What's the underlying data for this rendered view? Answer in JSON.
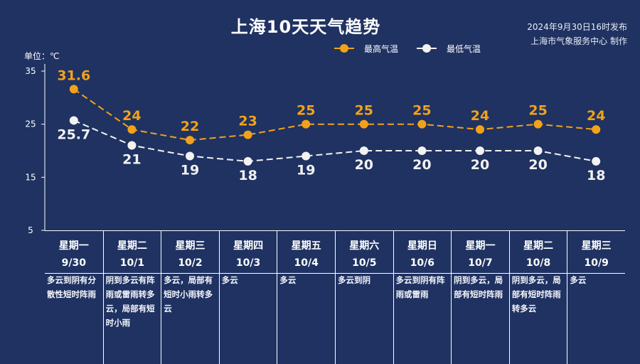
{
  "title": "上海10天天气趋势",
  "publisher": {
    "date": "2024年9月30日16时发布",
    "org": "上海市气象服务中心 制作"
  },
  "unit_label": "单位：℃",
  "legend": {
    "max_label": "最高气温",
    "min_label": "最低气温"
  },
  "colors": {
    "background": "#1f3261",
    "max_series": "#f2a21a",
    "min_series": "#f2f2f2",
    "text": "#ffffff"
  },
  "chart_data": {
    "type": "line",
    "title": "上海10天天气趋势",
    "categories": [
      "9/30",
      "10/1",
      "10/2",
      "10/3",
      "10/4",
      "10/5",
      "10/6",
      "10/7",
      "10/8",
      "10/9"
    ],
    "x": [
      "9/30",
      "10/1",
      "10/2",
      "10/3",
      "10/4",
      "10/5",
      "10/6",
      "10/7",
      "10/8",
      "10/9"
    ],
    "series": [
      {
        "name": "最高气温",
        "values": [
          31.6,
          24,
          22,
          23,
          25,
          25,
          25,
          24,
          25,
          24
        ]
      },
      {
        "name": "最低气温",
        "values": [
          25.7,
          21,
          19,
          18,
          19,
          20,
          20,
          20,
          20,
          18
        ]
      }
    ],
    "y_ticks": [
      5,
      15,
      25,
      35
    ],
    "ylim": [
      5,
      35
    ],
    "ylabel": "单位：℃",
    "grid": false,
    "legend_position": "top-right"
  },
  "days": [
    {
      "weekday": "星期一",
      "date": "9/30",
      "desc": "多云到阴有分散性短时阵雨"
    },
    {
      "weekday": "星期二",
      "date": "10/1",
      "desc": "阴到多云有阵雨或雷雨转多云，局部有短时小雨"
    },
    {
      "weekday": "星期三",
      "date": "10/2",
      "desc": "多云，局部有短时小雨转多云"
    },
    {
      "weekday": "星期四",
      "date": "10/3",
      "desc": "多云"
    },
    {
      "weekday": "星期五",
      "date": "10/4",
      "desc": "多云"
    },
    {
      "weekday": "星期六",
      "date": "10/5",
      "desc": "多云到阴"
    },
    {
      "weekday": "星期日",
      "date": "10/6",
      "desc": "多云到阴有阵雨或雷雨"
    },
    {
      "weekday": "星期一",
      "date": "10/7",
      "desc": "阴到多云，局部有短时阵雨"
    },
    {
      "weekday": "星期二",
      "date": "10/8",
      "desc": "阴到多云，局部有短时阵雨转多云"
    },
    {
      "weekday": "星期三",
      "date": "10/9",
      "desc": "多云"
    }
  ]
}
